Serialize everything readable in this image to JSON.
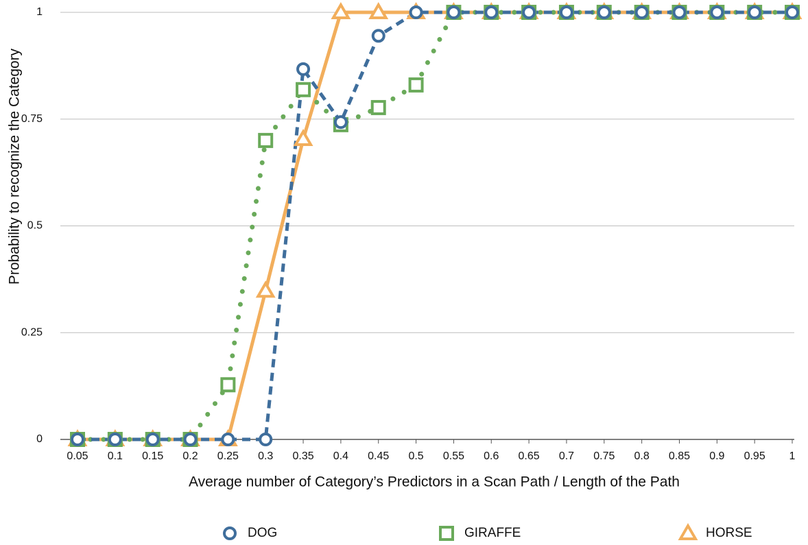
{
  "chart_data": {
    "type": "line",
    "x_label": "Average number of Category’s Predictors in a Scan Path / Length of the Path",
    "y_label": "Probability to recognize the Category",
    "categories": [
      "0.05",
      "0.1",
      "0.15",
      "0.2",
      "0.25",
      "0.3",
      "0.35",
      "0.4",
      "0.45",
      "0.5",
      "0.55",
      "0.6",
      "0.65",
      "0.7",
      "0.75",
      "0.8",
      "0.85",
      "0.9",
      "0.95",
      "1"
    ],
    "series": [
      {
        "name": "DOG",
        "color": "#3f6e9c",
        "values": [
          0,
          0,
          0,
          0,
          0,
          0,
          0.867,
          0.743,
          0.945,
          1,
          1,
          1,
          1,
          1,
          1,
          1,
          1,
          1,
          1,
          1
        ]
      },
      {
        "name": "GIRAFFE",
        "color": "#6aaa5a",
        "values": [
          0,
          0,
          0,
          0,
          0.128,
          0.7,
          0.819,
          0.737,
          0.777,
          0.83,
          1,
          1,
          1,
          1,
          1,
          1,
          1,
          1,
          1,
          1
        ]
      },
      {
        "name": "HORSE",
        "color": "#f2ae5c",
        "values": [
          0,
          0,
          0,
          0,
          0,
          0.348,
          0.703,
          1,
          1,
          1,
          1,
          1,
          1,
          1,
          1,
          1,
          1,
          1,
          1,
          1
        ]
      }
    ],
    "ylim": [
      0,
      1
    ],
    "yticks": [
      0,
      0.25,
      0.5,
      0.75,
      1
    ],
    "grid": true,
    "legend": "bottom"
  }
}
